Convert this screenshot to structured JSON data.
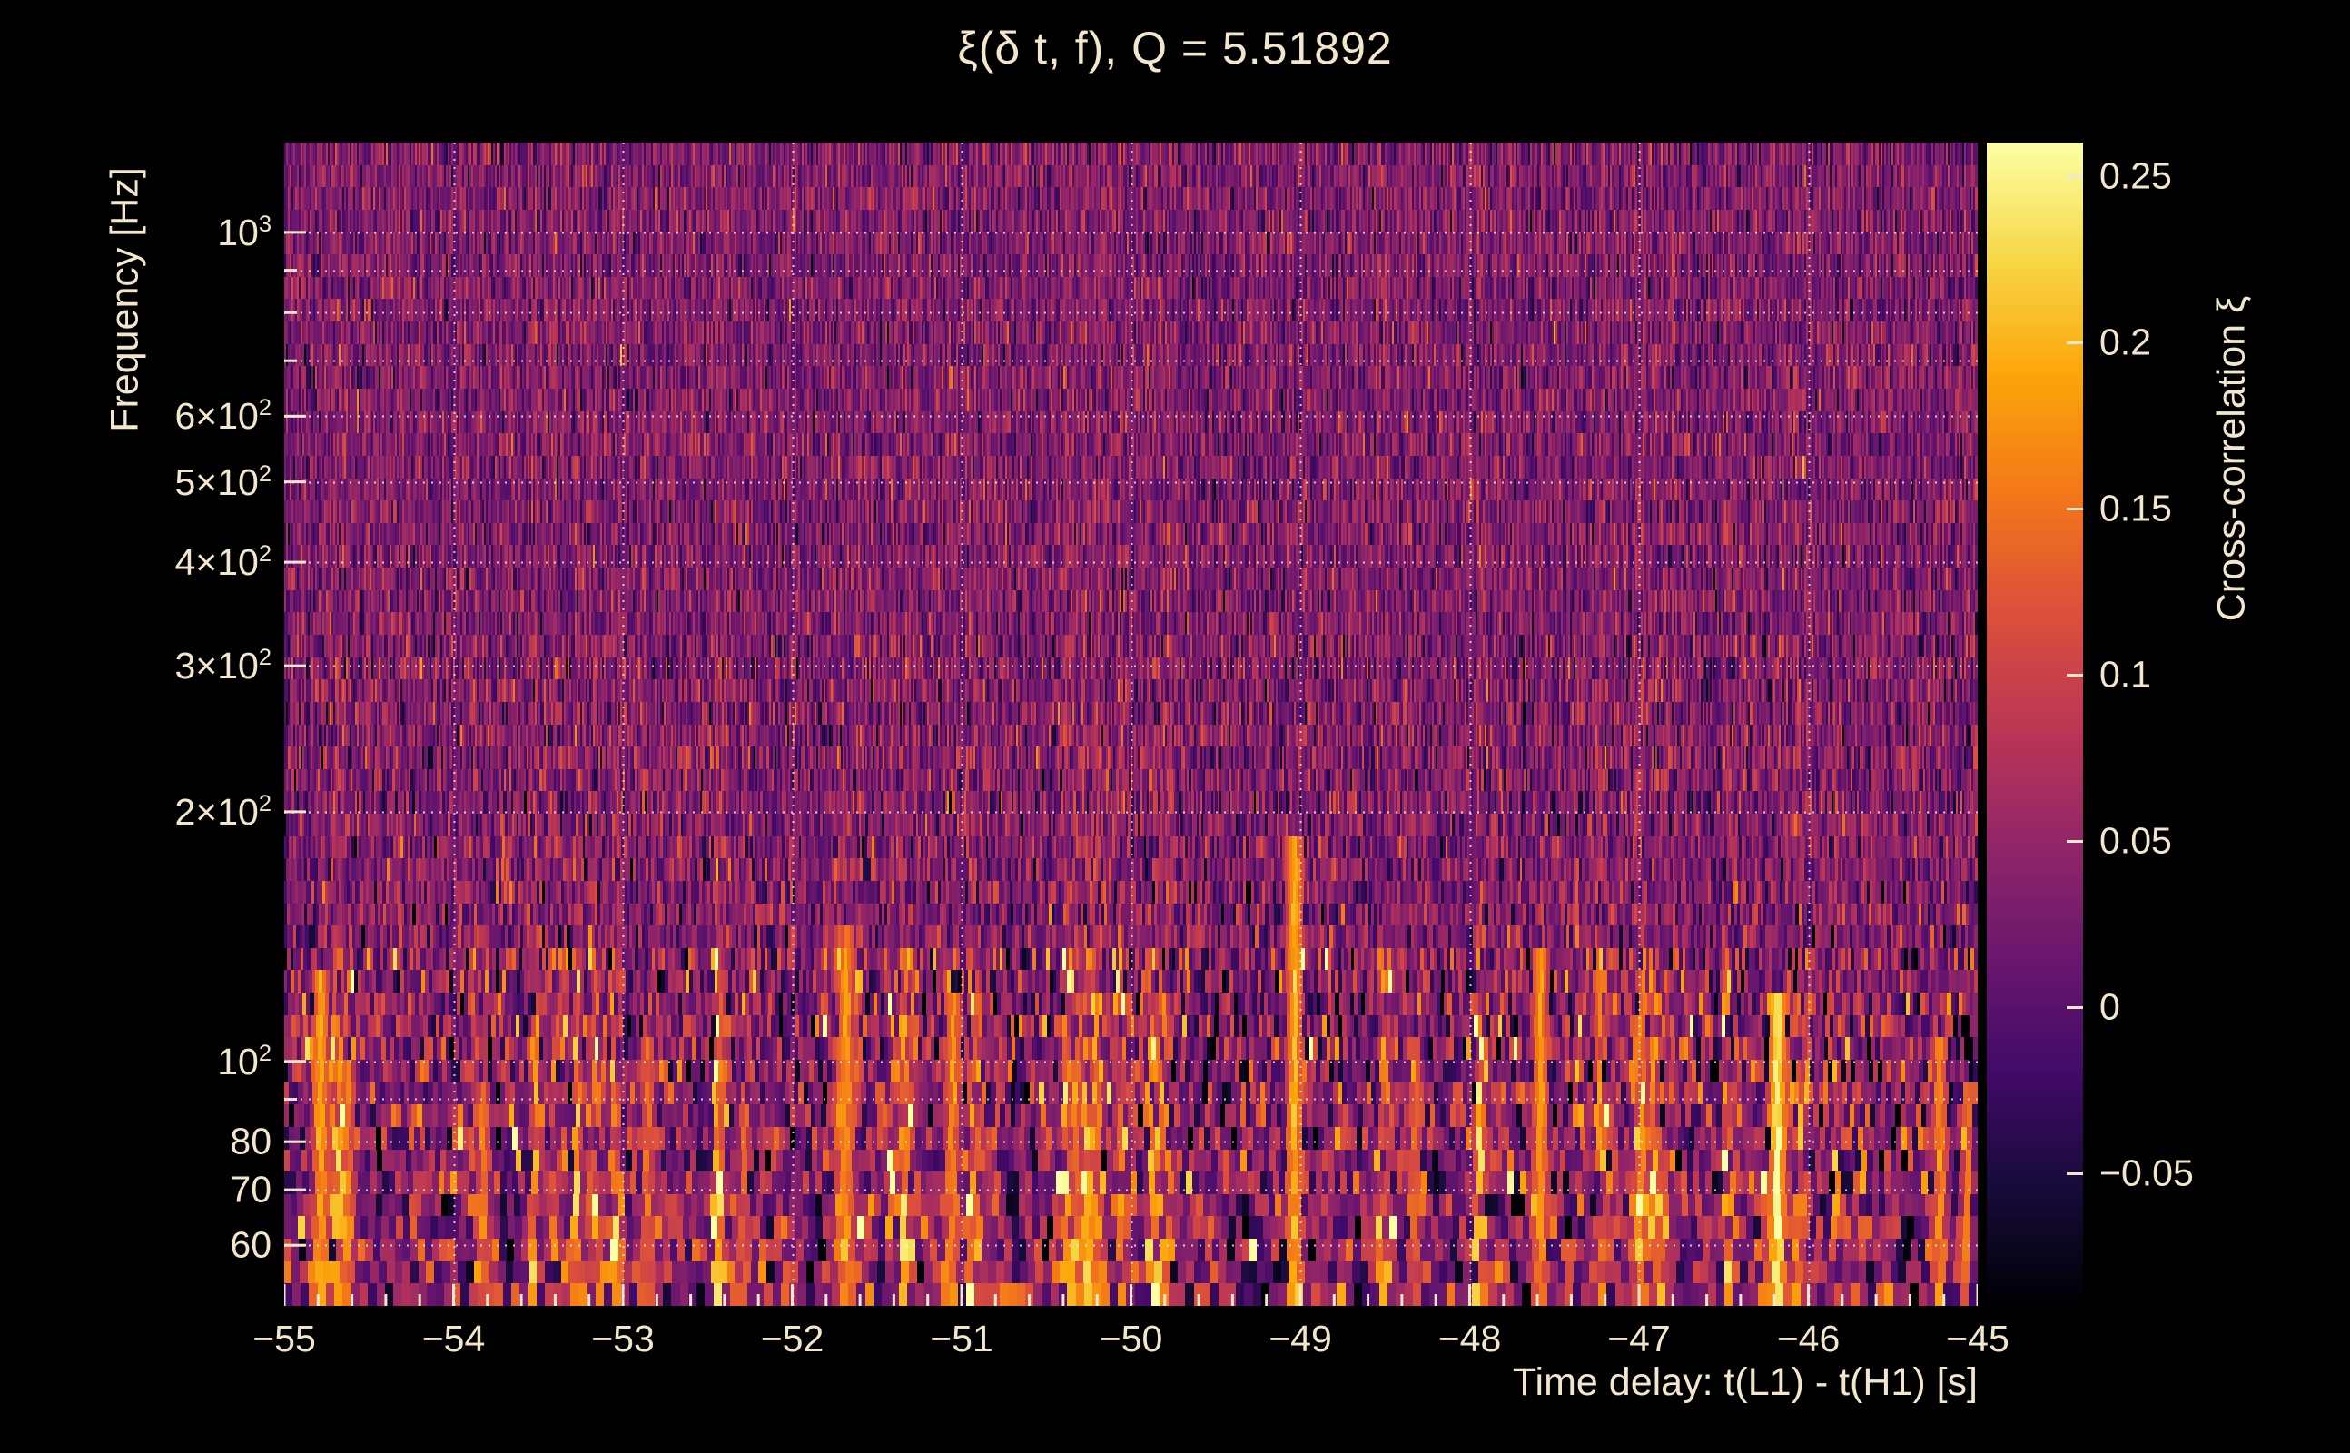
{
  "window": {
    "background": "#000000",
    "foreground": "#f2e7cd"
  },
  "chart_data": {
    "type": "heatmap",
    "title": "ξ(δ t, f), Q = 5.51892",
    "xlabel": "Time delay: t(L1) - t(H1) [s]",
    "ylabel": "Frequency [Hz]",
    "zlabel": "Cross-correlation ξ",
    "x_range": [
      -55,
      -45
    ],
    "y_range_hz": [
      50.7,
      1283
    ],
    "y_scale": "log",
    "z_range": [
      -0.09,
      0.26
    ],
    "x_ticks": [
      {
        "value": -55,
        "label": "−55"
      },
      {
        "value": -54,
        "label": "−54"
      },
      {
        "value": -53,
        "label": "−53"
      },
      {
        "value": -52,
        "label": "−52"
      },
      {
        "value": -51,
        "label": "−51"
      },
      {
        "value": -50,
        "label": "−50"
      },
      {
        "value": -49,
        "label": "−49"
      },
      {
        "value": -48,
        "label": "−48"
      },
      {
        "value": -47,
        "label": "−47"
      },
      {
        "value": -46,
        "label": "−46"
      },
      {
        "value": -45,
        "label": "−45"
      }
    ],
    "x_minor_step": 0.2,
    "y_ticks": [
      {
        "value": 1000,
        "mant": "10",
        "sup": "3"
      },
      {
        "value": 600,
        "mant": "6×10",
        "sup": "2"
      },
      {
        "value": 500,
        "mant": "5×10",
        "sup": "2"
      },
      {
        "value": 400,
        "mant": "4×10",
        "sup": "2"
      },
      {
        "value": 300,
        "mant": "3×10",
        "sup": "2"
      },
      {
        "value": 200,
        "mant": "2×10",
        "sup": "2"
      },
      {
        "value": 100,
        "mant": "10",
        "sup": "2"
      },
      {
        "value": 80,
        "mant": "80",
        "sup": ""
      },
      {
        "value": 70,
        "mant": "70",
        "sup": ""
      },
      {
        "value": 60,
        "mant": "60",
        "sup": ""
      }
    ],
    "y_minor_ticks": [
      90,
      700,
      800,
      900
    ],
    "grid_x": [
      -54,
      -53,
      -52,
      -51,
      -50,
      -49,
      -48,
      -47,
      -46
    ],
    "grid_y_hz": [
      60,
      70,
      80,
      90,
      100,
      200,
      300,
      400,
      500,
      600,
      700,
      800,
      900,
      1000
    ],
    "z_ticks": [
      {
        "value": 0.25,
        "label": "0.25"
      },
      {
        "value": 0.2,
        "label": "0.2"
      },
      {
        "value": 0.15,
        "label": "0.15"
      },
      {
        "value": 0.1,
        "label": "0.1"
      },
      {
        "value": 0.05,
        "label": "0.05"
      },
      {
        "value": 0,
        "label": "0"
      },
      {
        "value": -0.05,
        "label": "−0.05"
      }
    ],
    "colormap": {
      "name": "inferno",
      "stops": [
        {
          "pos": 0.0,
          "color": "#000004"
        },
        {
          "pos": 0.1,
          "color": "#160b39"
        },
        {
          "pos": 0.2,
          "color": "#420a68"
        },
        {
          "pos": 0.3,
          "color": "#6a176e"
        },
        {
          "pos": 0.4,
          "color": "#932667"
        },
        {
          "pos": 0.5,
          "color": "#bc3754"
        },
        {
          "pos": 0.6,
          "color": "#dd513a"
        },
        {
          "pos": 0.7,
          "color": "#f37819"
        },
        {
          "pos": 0.8,
          "color": "#fca50a"
        },
        {
          "pos": 0.9,
          "color": "#f6d746"
        },
        {
          "pos": 1.0,
          "color": "#fcffa4"
        }
      ]
    },
    "grid_style": {
      "color": "rgba(250,248,242,0.8)",
      "dash": [
        2,
        7
      ]
    },
    "texture": {
      "seed": 77031,
      "rows": 52,
      "base_offset": 0.025,
      "sigma_low": 0.055,
      "sigma_mid": 0.042,
      "sigma_high": 0.036,
      "burst_cells": 280,
      "burst_prob": 0.13,
      "stripe_cells": 860,
      "stripe_amp": 0.03,
      "low_freq_cutoff_hz": 140,
      "mid_freq_cutoff_hz": 320
    },
    "notable_features": [
      {
        "t": -54.78,
        "f_lo": 50,
        "f_hi": 130,
        "amp": 0.205,
        "w": 0.05
      },
      {
        "t": -54.62,
        "f_lo": 50,
        "f_hi": 100,
        "amp": 0.17,
        "w": 0.04
      },
      {
        "t": -53.82,
        "f_lo": 50,
        "f_hi": 95,
        "amp": 0.155,
        "w": 0.04
      },
      {
        "t": -52.85,
        "f_lo": 50,
        "f_hi": 110,
        "amp": 0.16,
        "w": 0.04
      },
      {
        "t": -52.28,
        "f_lo": 50,
        "f_hi": 90,
        "amp": 0.15,
        "w": 0.035
      },
      {
        "t": -51.68,
        "f_lo": 50,
        "f_hi": 150,
        "amp": 0.19,
        "w": 0.05
      },
      {
        "t": -51.05,
        "f_lo": 50,
        "f_hi": 120,
        "amp": 0.175,
        "w": 0.045
      },
      {
        "t": -50.32,
        "f_lo": 50,
        "f_hi": 100,
        "amp": 0.16,
        "w": 0.04
      },
      {
        "t": -49.03,
        "f_lo": 50,
        "f_hi": 190,
        "amp": 0.21,
        "w": 0.055
      },
      {
        "t": -48.32,
        "f_lo": 50,
        "f_hi": 100,
        "amp": 0.15,
        "w": 0.035
      },
      {
        "t": -47.58,
        "f_lo": 50,
        "f_hi": 140,
        "amp": 0.19,
        "w": 0.05
      },
      {
        "t": -46.98,
        "f_lo": 50,
        "f_hi": 110,
        "amp": 0.165,
        "w": 0.04
      },
      {
        "t": -46.18,
        "f_lo": 52,
        "f_hi": 118,
        "amp": 0.258,
        "w": 0.055
      },
      {
        "t": -45.22,
        "f_lo": 50,
        "f_hi": 105,
        "amp": 0.18,
        "w": 0.045
      },
      {
        "t": -45.06,
        "f_lo": 50,
        "f_hi": 95,
        "amp": 0.165,
        "w": 0.035
      }
    ]
  }
}
